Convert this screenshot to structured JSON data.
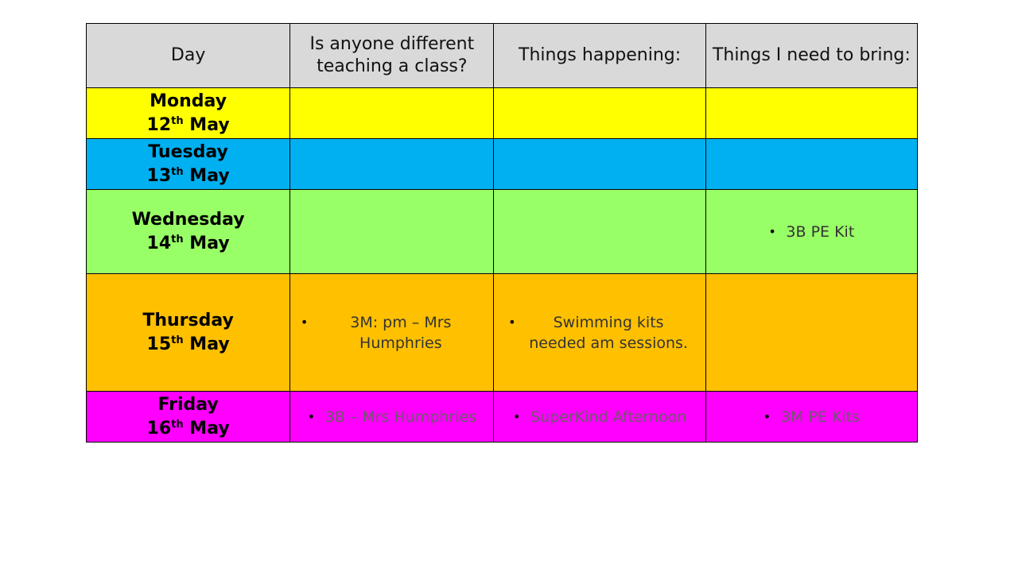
{
  "table": {
    "headers": {
      "day": "Day",
      "teaching": "Is anyone different teaching a class?",
      "happening": "Things happening:",
      "bring": "Things I need to bring:"
    },
    "rows": [
      {
        "day": "Monday",
        "date_num": "12",
        "date_suffix": "th",
        "month": "May",
        "color": "#ffff00",
        "teaching": "",
        "happening": "",
        "bring": ""
      },
      {
        "day": "Tuesday",
        "date_num": "13",
        "date_suffix": "th",
        "month": "May",
        "color": "#00b0f0",
        "teaching": "",
        "happening": "",
        "bring": ""
      },
      {
        "day": "Wednesday",
        "date_num": "14",
        "date_suffix": "th",
        "month": "May",
        "color": "#99ff66",
        "teaching": "",
        "happening": "",
        "bring": "3B PE Kit"
      },
      {
        "day": "Thursday",
        "date_num": "15",
        "date_suffix": "th",
        "month": "May",
        "color": "#ffc000",
        "teaching": "3M: pm – Mrs Humphries",
        "happening": "Swimming kits needed am sessions.",
        "bring": ""
      },
      {
        "day": "Friday",
        "date_num": "16",
        "date_suffix": "th",
        "month": "May",
        "color": "#ff00ff",
        "teaching": "3B – Mrs Humphries",
        "happening": "SuperKind Afternoon",
        "bring": "3M PE Kits"
      }
    ],
    "bullet_symbol": "•"
  }
}
